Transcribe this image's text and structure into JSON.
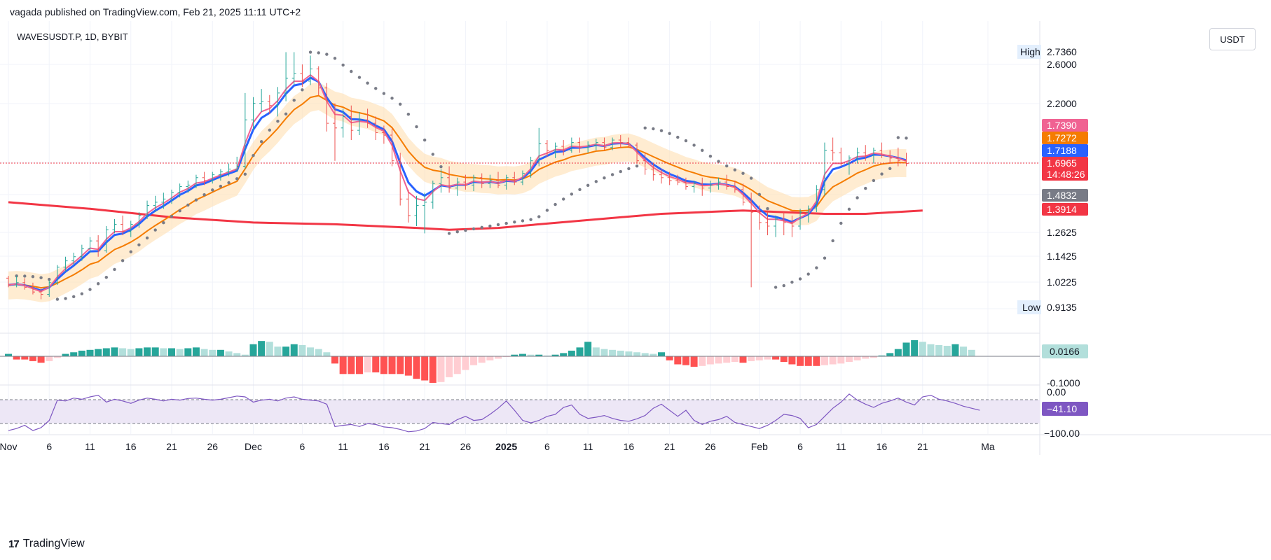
{
  "header": {
    "published": "vagada published on TradingView.com, Feb 21, 2025 11:11 UTC+2"
  },
  "symbol": {
    "name": "WAVESUSDT.P, 1D, BYBIT"
  },
  "currency": "USDT",
  "footer": {
    "brand": "TradingView",
    "logo": "17"
  },
  "colors": {
    "up": "#26a69a",
    "down": "#ef5350",
    "blue": "#2962ff",
    "pink": "#f06292",
    "orange": "#f57c00",
    "red": "#f23645",
    "sar": "#787b86",
    "band": "#ffe0b2",
    "rsi": "#7e57c2",
    "rsiBand": "#ede7f6",
    "macdUp": "#26a69a",
    "macdUpLight": "#b2dfdb",
    "macdDown": "#ff5252",
    "macdDownLight": "#ffcdd2"
  },
  "chart_data": {
    "type": "candlestick",
    "symbol": "WAVESUSDT.P",
    "interval": "1D",
    "exchange": "BYBIT",
    "price_axis": {
      "log_scale": true,
      "ticks": [
        "2.6000",
        "2.2000",
        "1.2625",
        "1.1425",
        "1.0225"
      ],
      "high": {
        "label": "High",
        "value": "2.7360"
      },
      "low": {
        "label": "Low",
        "value": "0.9135"
      },
      "tags": [
        {
          "value": "1.7390",
          "color": "#f06292"
        },
        {
          "value": "1.7272",
          "color": "#f57c00"
        },
        {
          "value": "1.7188",
          "color": "#2962ff"
        },
        {
          "value": "1.6965",
          "sub": "14:48:26",
          "color": "#f23645"
        },
        {
          "value": "1.4832",
          "color": "#787b86"
        },
        {
          "value": "1.3914",
          "color": "#f23645"
        }
      ]
    },
    "x_axis": {
      "ticks": [
        {
          "label": "Nov",
          "i": 0,
          "bold": false
        },
        {
          "label": "6",
          "i": 5
        },
        {
          "label": "11",
          "i": 10
        },
        {
          "label": "16",
          "i": 15
        },
        {
          "label": "21",
          "i": 20
        },
        {
          "label": "26",
          "i": 25
        },
        {
          "label": "Dec",
          "i": 30
        },
        {
          "label": "6",
          "i": 36
        },
        {
          "label": "11",
          "i": 41
        },
        {
          "label": "16",
          "i": 46
        },
        {
          "label": "21",
          "i": 51
        },
        {
          "label": "26",
          "i": 56
        },
        {
          "label": "2025",
          "i": 61,
          "bold": true
        },
        {
          "label": "6",
          "i": 66
        },
        {
          "label": "11",
          "i": 71
        },
        {
          "label": "16",
          "i": 76
        },
        {
          "label": "21",
          "i": 81
        },
        {
          "label": "26",
          "i": 86
        },
        {
          "label": "Feb",
          "i": 92
        },
        {
          "label": "6",
          "i": 97
        },
        {
          "label": "11",
          "i": 102
        },
        {
          "label": "16",
          "i": 107
        },
        {
          "label": "21",
          "i": 112
        },
        {
          "label": "Ma",
          "i": 120
        }
      ]
    },
    "candles": [
      [
        1.04,
        1.05,
        1.0,
        1.01
      ],
      [
        1.01,
        1.05,
        1.0,
        1.02
      ],
      [
        1.02,
        1.04,
        0.99,
        1.0
      ],
      [
        1.0,
        1.02,
        0.97,
        0.98
      ],
      [
        0.98,
        1.0,
        0.95,
        0.97
      ],
      [
        0.97,
        1.03,
        0.96,
        1.02
      ],
      [
        1.02,
        1.1,
        1.01,
        1.09
      ],
      [
        1.09,
        1.14,
        1.07,
        1.12
      ],
      [
        1.12,
        1.16,
        1.1,
        1.14
      ],
      [
        1.14,
        1.2,
        1.12,
        1.18
      ],
      [
        1.18,
        1.24,
        1.16,
        1.22
      ],
      [
        1.22,
        1.25,
        1.14,
        1.17
      ],
      [
        1.17,
        1.3,
        1.16,
        1.28
      ],
      [
        1.28,
        1.34,
        1.26,
        1.31
      ],
      [
        1.31,
        1.36,
        1.25,
        1.27
      ],
      [
        1.27,
        1.33,
        1.24,
        1.31
      ],
      [
        1.31,
        1.38,
        1.29,
        1.36
      ],
      [
        1.36,
        1.45,
        1.34,
        1.42
      ],
      [
        1.42,
        1.48,
        1.38,
        1.44
      ],
      [
        1.44,
        1.5,
        1.4,
        1.46
      ],
      [
        1.46,
        1.52,
        1.43,
        1.5
      ],
      [
        1.5,
        1.56,
        1.47,
        1.54
      ],
      [
        1.54,
        1.58,
        1.5,
        1.55
      ],
      [
        1.55,
        1.62,
        1.53,
        1.6
      ],
      [
        1.6,
        1.64,
        1.55,
        1.58
      ],
      [
        1.58,
        1.64,
        1.56,
        1.62
      ],
      [
        1.62,
        1.66,
        1.58,
        1.64
      ],
      [
        1.64,
        1.7,
        1.61,
        1.66
      ],
      [
        1.66,
        1.75,
        1.64,
        1.68
      ],
      [
        1.68,
        2.3,
        1.66,
        2.05
      ],
      [
        2.05,
        2.26,
        1.96,
        2.2
      ],
      [
        2.2,
        2.34,
        2.12,
        2.22
      ],
      [
        2.22,
        2.28,
        2.1,
        2.18
      ],
      [
        2.18,
        2.36,
        2.08,
        2.3
      ],
      [
        2.3,
        2.74,
        2.22,
        2.45
      ],
      [
        2.45,
        2.74,
        2.38,
        2.5
      ],
      [
        2.5,
        2.6,
        2.36,
        2.42
      ],
      [
        2.42,
        2.7,
        2.38,
        2.55
      ],
      [
        2.55,
        2.58,
        2.28,
        2.35
      ],
      [
        2.35,
        2.4,
        1.95,
        2.02
      ],
      [
        2.02,
        2.2,
        1.72,
        1.98
      ],
      [
        1.98,
        2.15,
        1.9,
        2.08
      ],
      [
        2.08,
        2.18,
        1.88,
        1.96
      ],
      [
        1.96,
        2.12,
        1.92,
        2.05
      ],
      [
        2.05,
        2.15,
        1.98,
        2.02
      ],
      [
        2.02,
        2.08,
        1.88,
        1.94
      ],
      [
        1.94,
        2.0,
        1.85,
        1.92
      ],
      [
        1.92,
        1.98,
        1.68,
        1.72
      ],
      [
        1.72,
        1.78,
        1.42,
        1.46
      ],
      [
        1.46,
        1.52,
        1.32,
        1.36
      ],
      [
        1.36,
        1.48,
        1.3,
        1.42
      ],
      [
        1.42,
        1.5,
        1.26,
        1.44
      ],
      [
        1.44,
        1.58,
        1.4,
        1.56
      ],
      [
        1.56,
        1.66,
        1.5,
        1.6
      ],
      [
        1.6,
        1.68,
        1.5,
        1.53
      ],
      [
        1.53,
        1.6,
        1.48,
        1.57
      ],
      [
        1.57,
        1.62,
        1.52,
        1.55
      ],
      [
        1.55,
        1.62,
        1.51,
        1.6
      ],
      [
        1.6,
        1.63,
        1.53,
        1.56
      ],
      [
        1.56,
        1.62,
        1.53,
        1.58
      ],
      [
        1.58,
        1.64,
        1.53,
        1.55
      ],
      [
        1.55,
        1.62,
        1.52,
        1.6
      ],
      [
        1.6,
        1.64,
        1.55,
        1.57
      ],
      [
        1.57,
        1.65,
        1.55,
        1.63
      ],
      [
        1.63,
        1.75,
        1.6,
        1.72
      ],
      [
        1.72,
        1.98,
        1.68,
        1.85
      ],
      [
        1.85,
        1.88,
        1.75,
        1.8
      ],
      [
        1.8,
        1.86,
        1.74,
        1.83
      ],
      [
        1.83,
        1.88,
        1.76,
        1.8
      ],
      [
        1.8,
        1.9,
        1.78,
        1.86
      ],
      [
        1.86,
        1.9,
        1.78,
        1.82
      ],
      [
        1.82,
        1.87,
        1.78,
        1.84
      ],
      [
        1.84,
        1.89,
        1.8,
        1.86
      ],
      [
        1.86,
        1.9,
        1.8,
        1.82
      ],
      [
        1.82,
        1.9,
        1.8,
        1.88
      ],
      [
        1.88,
        1.92,
        1.82,
        1.86
      ],
      [
        1.86,
        1.9,
        1.82,
        1.84
      ],
      [
        1.84,
        1.86,
        1.7,
        1.72
      ],
      [
        1.72,
        1.78,
        1.62,
        1.66
      ],
      [
        1.66,
        1.7,
        1.58,
        1.62
      ],
      [
        1.62,
        1.66,
        1.56,
        1.6
      ],
      [
        1.6,
        1.64,
        1.55,
        1.58
      ],
      [
        1.58,
        1.62,
        1.55,
        1.57
      ],
      [
        1.57,
        1.6,
        1.52,
        1.54
      ],
      [
        1.54,
        1.58,
        1.5,
        1.56
      ],
      [
        1.56,
        1.6,
        1.48,
        1.53
      ],
      [
        1.53,
        1.58,
        1.5,
        1.55
      ],
      [
        1.55,
        1.6,
        1.52,
        1.57
      ],
      [
        1.57,
        1.62,
        1.52,
        1.54
      ],
      [
        1.54,
        1.58,
        1.5,
        1.52
      ],
      [
        1.52,
        1.56,
        1.42,
        1.44
      ],
      [
        1.44,
        1.5,
        1.0,
        1.38
      ],
      [
        1.38,
        1.42,
        1.28,
        1.32
      ],
      [
        1.32,
        1.38,
        1.25,
        1.3
      ],
      [
        1.3,
        1.36,
        1.24,
        1.34
      ],
      [
        1.34,
        1.38,
        1.25,
        1.32
      ],
      [
        1.32,
        1.36,
        1.24,
        1.3
      ],
      [
        1.3,
        1.4,
        1.28,
        1.38
      ],
      [
        1.38,
        1.42,
        1.32,
        1.4
      ],
      [
        1.4,
        1.55,
        1.38,
        1.52
      ],
      [
        1.52,
        1.86,
        1.48,
        1.8
      ],
      [
        1.8,
        1.9,
        1.72,
        1.78
      ],
      [
        1.78,
        1.82,
        1.68,
        1.7
      ],
      [
        1.7,
        1.76,
        1.62,
        1.74
      ],
      [
        1.74,
        1.82,
        1.7,
        1.78
      ],
      [
        1.78,
        1.84,
        1.72,
        1.76
      ],
      [
        1.76,
        1.82,
        1.7,
        1.8
      ],
      [
        1.8,
        1.86,
        1.74,
        1.76
      ],
      [
        1.76,
        1.8,
        1.7,
        1.74
      ],
      [
        1.74,
        1.82,
        1.68,
        1.72
      ],
      [
        1.72,
        1.78,
        1.68,
        1.7
      ]
    ],
    "sma200": {
      "color": "#f23645",
      "points": [
        [
          0,
          1.44
        ],
        [
          10,
          1.4
        ],
        [
          20,
          1.35
        ],
        [
          30,
          1.32
        ],
        [
          40,
          1.31
        ],
        [
          50,
          1.29
        ],
        [
          54,
          1.28
        ],
        [
          60,
          1.29
        ],
        [
          65,
          1.31
        ],
        [
          70,
          1.33
        ],
        [
          75,
          1.35
        ],
        [
          80,
          1.37
        ],
        [
          85,
          1.38
        ],
        [
          90,
          1.39
        ],
        [
          95,
          1.38
        ],
        [
          100,
          1.37
        ],
        [
          105,
          1.37
        ],
        [
          112,
          1.39
        ]
      ]
    },
    "macd_histogram": [
      3,
      -4,
      -4,
      -6,
      -8,
      -6,
      -2,
      3,
      5,
      7,
      8,
      9,
      10,
      11,
      10,
      9,
      10,
      11,
      11,
      10,
      10,
      9,
      10,
      11,
      9,
      8,
      8,
      6,
      4,
      2,
      15,
      19,
      18,
      12,
      12,
      15,
      14,
      11,
      9,
      5,
      -9,
      -22,
      -22,
      -22,
      -20,
      -20,
      -22,
      -22,
      -22,
      -24,
      -28,
      -30,
      -33,
      -32,
      -26,
      -22,
      -17,
      -11,
      -8,
      -5,
      -3,
      -1,
      2,
      3,
      2,
      2,
      1,
      2,
      4,
      7,
      11,
      18,
      11,
      9,
      8,
      7,
      6,
      5,
      4,
      3,
      5,
      -5,
      -10,
      -11,
      -13,
      -12,
      -10,
      -9,
      -8,
      -7,
      -8,
      -6,
      -5,
      -4,
      -4,
      -7,
      -10,
      -12,
      -12,
      -12,
      -11,
      -10,
      -9,
      -7,
      -5,
      -3,
      -2,
      1,
      4,
      9,
      17,
      20,
      18,
      15,
      14,
      13,
      15,
      12,
      8
    ],
    "macd_ticks": [
      "-0.1000"
    ],
    "macd_value": "0.0166",
    "rsi": [
      -95,
      -90,
      -82,
      -95,
      -88,
      -70,
      -20,
      -22,
      -15,
      -18,
      -12,
      -8,
      -25,
      -18,
      -22,
      -28,
      -20,
      -15,
      -18,
      -22,
      -18,
      -20,
      -16,
      -15,
      -18,
      -20,
      -18,
      -14,
      -10,
      -12,
      -25,
      -20,
      -18,
      -22,
      -15,
      -12,
      -18,
      -20,
      -22,
      -30,
      -85,
      -82,
      -80,
      -85,
      -78,
      -80,
      -86,
      -88,
      -92,
      -98,
      -96,
      -90,
      -75,
      -78,
      -80,
      -68,
      -60,
      -70,
      -68,
      -55,
      -40,
      -22,
      -45,
      -70,
      -76,
      -70,
      -60,
      -55,
      -38,
      -32,
      -55,
      -65,
      -62,
      -58,
      -65,
      -70,
      -72,
      -66,
      -58,
      -40,
      -30,
      -45,
      -60,
      -45,
      -70,
      -80,
      -72,
      -68,
      -60,
      -75,
      -80,
      -85,
      -90,
      -82,
      -70,
      -55,
      -58,
      -65,
      -88,
      -80,
      -60,
      -40,
      -25,
      -5,
      -20,
      -30,
      -38,
      -28,
      -22,
      -15,
      -25,
      -32,
      -12,
      -8,
      -18,
      -22,
      -28,
      -35,
      -40,
      -45
    ],
    "rsi_ticks": [
      "0.00",
      "−100.00"
    ],
    "rsi_value": "−41.10"
  }
}
